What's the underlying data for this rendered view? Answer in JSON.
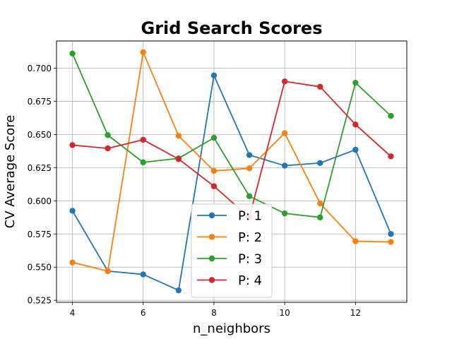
{
  "chart_data": {
    "type": "line",
    "title": "Grid Search Scores",
    "xlabel": "n_neighbors",
    "ylabel": "CV Average Score",
    "x": [
      4,
      5,
      6,
      7,
      8,
      9,
      10,
      11,
      12,
      13
    ],
    "xlim": [
      3.55,
      13.45
    ],
    "ylim": [
      0.5235,
      0.7205
    ],
    "xticks": [
      4,
      6,
      8,
      10,
      12
    ],
    "yticks": [
      0.525,
      0.55,
      0.575,
      0.6,
      0.625,
      0.65,
      0.675,
      0.7
    ],
    "grid": true,
    "legend_position": "lower-center",
    "series": [
      {
        "name": "P: 1",
        "color": "#1f77b4",
        "values": [
          0.5925,
          0.547,
          0.5445,
          0.5325,
          0.6945,
          0.6345,
          0.6265,
          0.6285,
          0.6385,
          0.575
        ]
      },
      {
        "name": "P: 2",
        "color": "#ff7f0e",
        "values": [
          0.5535,
          0.547,
          0.712,
          0.649,
          0.6225,
          0.6245,
          0.651,
          0.598,
          0.5695,
          0.569
        ]
      },
      {
        "name": "P: 3",
        "color": "#2ca02c",
        "values": [
          0.711,
          0.6495,
          0.629,
          0.632,
          0.6475,
          0.6035,
          0.5905,
          0.5875,
          0.689,
          0.664
        ]
      },
      {
        "name": "P: 4",
        "color": "#d62728",
        "values": [
          0.642,
          0.6395,
          0.646,
          0.6315,
          0.611,
          0.5875,
          0.69,
          0.686,
          0.6575,
          0.6335
        ]
      }
    ]
  }
}
